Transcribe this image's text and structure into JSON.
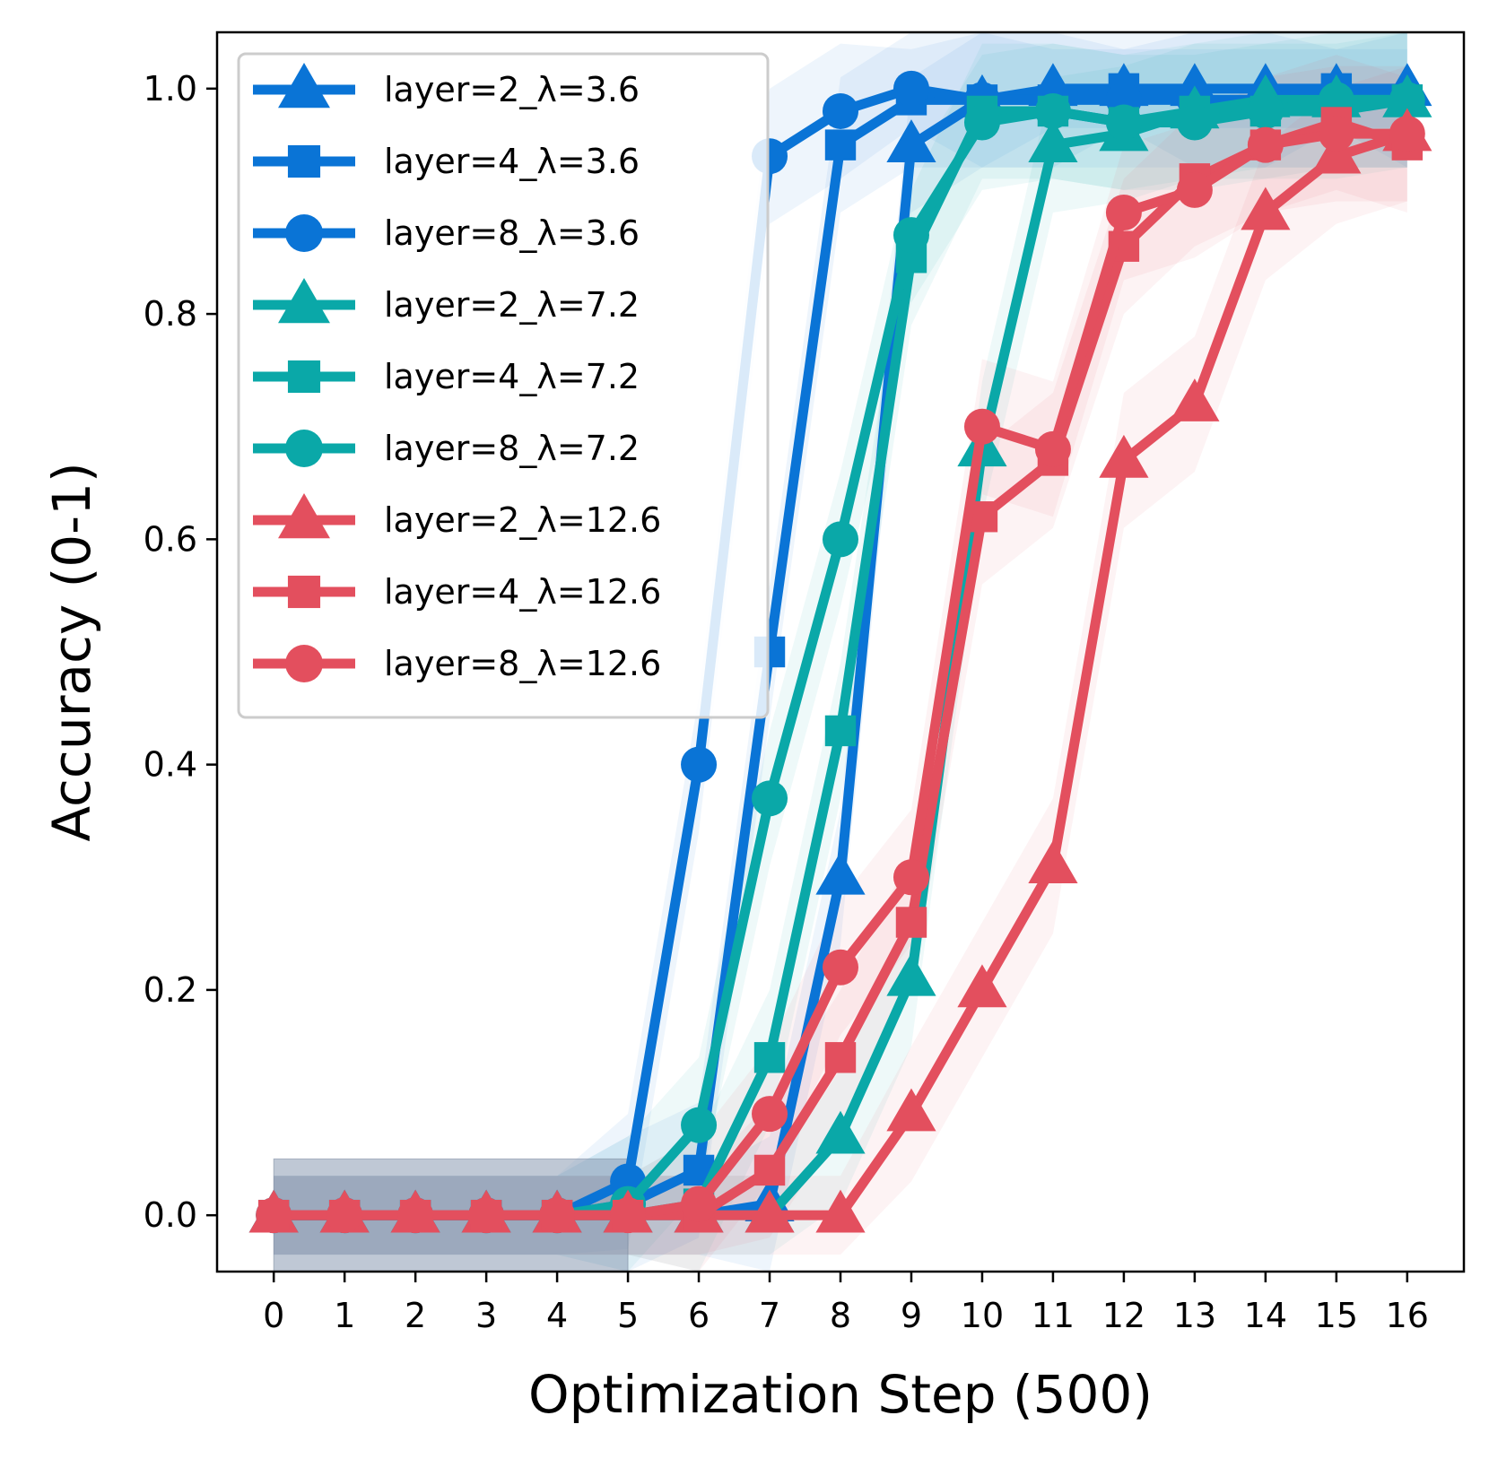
{
  "chart_data": {
    "type": "line",
    "xlabel": "Optimization Step (500)",
    "ylabel": "Accuracy (0-1)",
    "xlim": [
      -0.8,
      16.8
    ],
    "ylim": [
      -0.05,
      1.05
    ],
    "x": [
      0,
      1,
      2,
      3,
      4,
      5,
      6,
      7,
      8,
      9,
      10,
      11,
      12,
      13,
      14,
      15,
      16
    ],
    "xtick_labels": [
      "0",
      "1",
      "2",
      "3",
      "4",
      "5",
      "6",
      "7",
      "8",
      "9",
      "10",
      "11",
      "12",
      "13",
      "14",
      "15",
      "16"
    ],
    "yticks": [
      0.0,
      0.2,
      0.4,
      0.6,
      0.8,
      1.0
    ],
    "ytick_labels": [
      "0.0",
      "0.2",
      "0.4",
      "0.6",
      "0.8",
      "1.0"
    ],
    "legend_position": "upper-left",
    "shaded_region": {
      "x": [
        0,
        5
      ],
      "y": [
        -0.05,
        0.05
      ],
      "color": "#8a9bb3"
    },
    "series": [
      {
        "name": "layer=2_λ=3.6",
        "color": "#0a74d6",
        "marker": "triangle",
        "values": [
          0,
          0,
          0,
          0,
          0,
          0,
          0.0,
          0.01,
          0.3,
          0.95,
          0.99,
          1.0,
          1.0,
          1.0,
          1.0,
          1.0,
          1.0
        ]
      },
      {
        "name": "layer=4_λ=3.6",
        "color": "#0a74d6",
        "marker": "square",
        "values": [
          0,
          0,
          0,
          0,
          0,
          0.01,
          0.04,
          0.5,
          0.95,
          0.99,
          0.99,
          0.99,
          1.0,
          0.99,
          0.99,
          1.0,
          0.99
        ]
      },
      {
        "name": "layer=8_λ=3.6",
        "color": "#0a74d6",
        "marker": "circle",
        "values": [
          0,
          0,
          0,
          0,
          0,
          0.03,
          0.4,
          0.94,
          0.98,
          1.0,
          0.99,
          0.99,
          0.99,
          0.99,
          0.99,
          0.99,
          0.99
        ]
      },
      {
        "name": "layer=2_λ=7.2",
        "color": "#0aa8a8",
        "marker": "triangle",
        "values": [
          0,
          0,
          0,
          0,
          0,
          0,
          0.0,
          0.0,
          0.07,
          0.21,
          0.68,
          0.95,
          0.96,
          0.98,
          0.99,
          0.99,
          0.99
        ]
      },
      {
        "name": "layer=4_λ=7.2",
        "color": "#0aa8a8",
        "marker": "square",
        "values": [
          0,
          0,
          0,
          0,
          0,
          0,
          0.01,
          0.14,
          0.43,
          0.85,
          0.98,
          0.98,
          0.97,
          0.98,
          0.98,
          0.98,
          0.99
        ]
      },
      {
        "name": "layer=8_λ=7.2",
        "color": "#0aa8a8",
        "marker": "circle",
        "values": [
          0,
          0,
          0,
          0,
          0,
          0.01,
          0.08,
          0.37,
          0.6,
          0.87,
          0.97,
          0.98,
          0.97,
          0.97,
          0.98,
          0.99,
          0.99
        ]
      },
      {
        "name": "layer=2_λ=12.6",
        "color": "#e34f5e",
        "marker": "triangle",
        "values": [
          0,
          0,
          0,
          0,
          0,
          0,
          0.0,
          0.0,
          0.0,
          0.09,
          0.2,
          0.31,
          0.67,
          0.72,
          0.89,
          0.94,
          0.96
        ]
      },
      {
        "name": "layer=4_λ=12.6",
        "color": "#e34f5e",
        "marker": "square",
        "values": [
          0,
          0,
          0,
          0,
          0,
          0,
          0.0,
          0.04,
          0.14,
          0.26,
          0.62,
          0.67,
          0.86,
          0.92,
          0.95,
          0.97,
          0.95
        ]
      },
      {
        "name": "layer=8_λ=12.6",
        "color": "#e34f5e",
        "marker": "circle",
        "values": [
          0,
          0,
          0,
          0,
          0,
          0,
          0.01,
          0.09,
          0.22,
          0.3,
          0.7,
          0.68,
          0.89,
          0.91,
          0.95,
          0.96,
          0.96
        ]
      }
    ]
  }
}
